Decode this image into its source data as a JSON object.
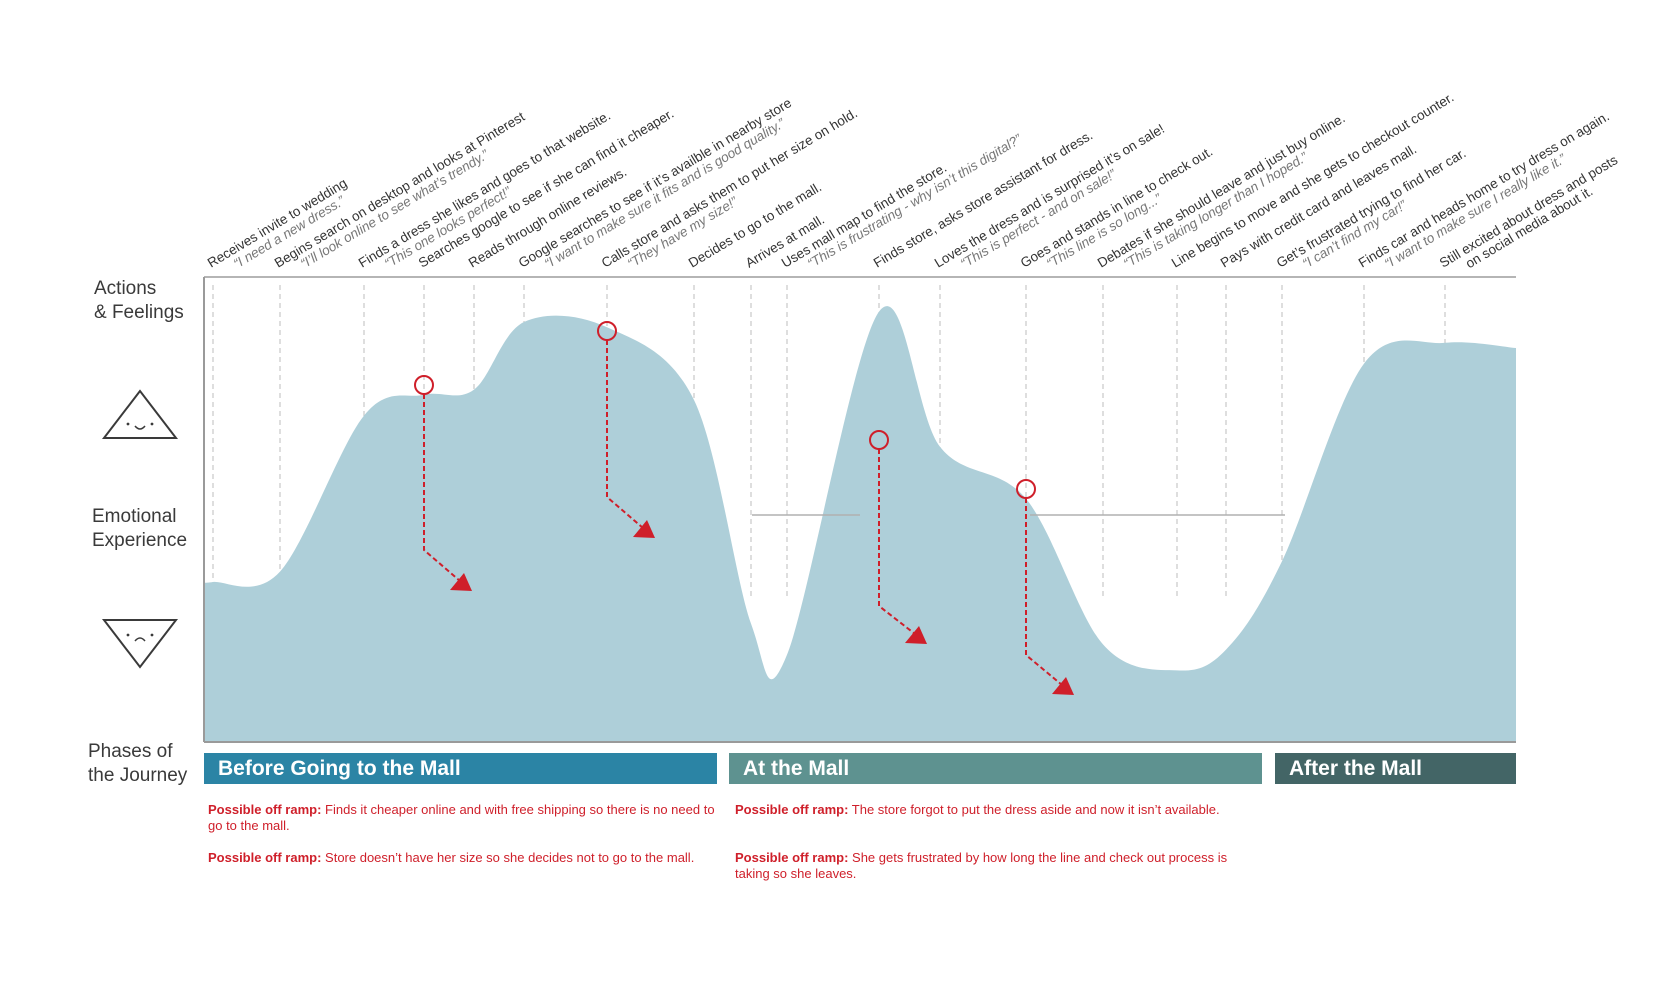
{
  "row_labels": {
    "actions": [
      "Actions",
      "& Feelings"
    ],
    "emotional": [
      "Emotional",
      "Experience"
    ],
    "phases": [
      "Phases of",
      "the Journey"
    ]
  },
  "steps": [
    {
      "action": "Receives invite to wedding",
      "quote": "“I need a new dress.”"
    },
    {
      "action": "Begins search on desktop and looks at Pinterest",
      "quote": "“I’ll look online to see what’s trendy.”"
    },
    {
      "action": "Finds a dress she likes and goes to that website.",
      "quote": "“This one looks perfect!”"
    },
    {
      "action": "Searches google to see if she can find it cheaper.",
      "quote": ""
    },
    {
      "action": "Reads through online reviews.",
      "quote": ""
    },
    {
      "action": "Google searches to see if it’s availble in nearby store",
      "quote": "“I want to make sure it fits and is good quality.”"
    },
    {
      "action": "Calls store and asks them to put her size on hold.",
      "quote": "“They have my size!”"
    },
    {
      "action": "Decides to go to the mall.",
      "quote": ""
    },
    {
      "action": "Arrives at mall.",
      "quote": ""
    },
    {
      "action": "Uses mall map to find the store.",
      "quote": "“This is frustrating - why isn’t this digital?”"
    },
    {
      "action": "Finds store, asks store assistant for dress.",
      "quote": ""
    },
    {
      "action": "Loves the dress and is surprised it’s on sale!",
      "quote": "“This is perfect - and on sale!”"
    },
    {
      "action": "Goes and stands in line to check out.",
      "quote": "“This line is so long...”"
    },
    {
      "action": "Debates if she should leave and just buy online.",
      "quote": "“This is taking longer than I hoped.”"
    },
    {
      "action": "Line begins to move and she gets to checkout counter.",
      "quote": ""
    },
    {
      "action": "Pays with credit card and leaves mall.",
      "quote": ""
    },
    {
      "action": "Get’s frustrated trying to find her car.",
      "quote": "“I can’t find my car!”"
    },
    {
      "action": "Finds car and heads home to try dress on again.",
      "quote": "“I want to make sure I really like it.”"
    },
    {
      "action": "Still excited about dress and posts",
      "quote": "on social media about it."
    }
  ],
  "emotion_levels": [
    0.4,
    0.42,
    0.72,
    0.76,
    0.77,
    0.9,
    0.89,
    0.75,
    0.32,
    0.26,
    0.92,
    0.66,
    0.56,
    0.28,
    0.23,
    0.27,
    0.44,
    0.82,
    0.86
  ],
  "phases": [
    {
      "label": "Before Going to the Mall",
      "color": "#2b84a5"
    },
    {
      "label": "At the Mall",
      "color": "#5e9290"
    },
    {
      "label": "After the Mall",
      "color": "#436566"
    }
  ],
  "off_ramps": [
    {
      "prefix": "Possible off ramp:",
      "text": "  Finds it cheaper online and with free shipping so there is no need to go to the mall."
    },
    {
      "prefix": "Possible off ramp:",
      "text": " Store doesn’t have her size so she decides not to go to the mall."
    },
    {
      "prefix": "Possible off ramp:",
      "text": " The store forgot to put the dress aside and now it isn’t available."
    },
    {
      "prefix": "Possible off ramp:",
      "text": " She gets frustrated by how long the line and check out process is taking so she leaves."
    }
  ],
  "colors": {
    "area": "#aecfd9",
    "accent": "#cf1f2a",
    "dash": "#c9c9c9",
    "axis": "#9a9a9a",
    "text": "#333333",
    "quote": "#777777"
  },
  "icons": {
    "positive": "happy-triangle-icon",
    "negative": "sad-triangle-icon"
  }
}
